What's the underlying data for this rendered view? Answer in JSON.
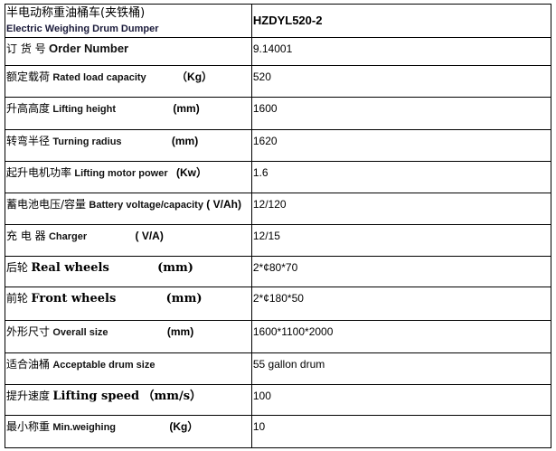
{
  "header": {
    "title_cn": "半电动称重油桶车(夹铁桶)",
    "title_en": "Electric Weighing Drum Dumper",
    "model": "HZDYL520-2"
  },
  "rows": [
    {
      "cn": "订 货 号",
      "en": "Order Number",
      "unit": "",
      "value": "9.14001"
    },
    {
      "cn": "额定载荷",
      "en": "Rated load capacity",
      "unit": "（Kg）",
      "value": "520"
    },
    {
      "cn": "升高高度",
      "en": "Lifting height",
      "unit": "(mm)",
      "value": "1600"
    },
    {
      "cn": "转弯半径",
      "en": "Turning radius",
      "unit": "(mm)",
      "value": "1620"
    },
    {
      "cn": "起升电机功率",
      "en": "Lifting motor power",
      "unit": "(Kw）",
      "value": "1.6"
    },
    {
      "cn": "蓄电池电压/容量",
      "en": "Battery voltage/capacity",
      "unit": "( V/Ah)",
      "value": "12/120"
    },
    {
      "cn": "充 电 器",
      "en": "Charger",
      "unit": "( V/A)",
      "value": "12/15"
    },
    {
      "cn": "后轮",
      "en": "Real wheels",
      "unit": "(mm)",
      "value": "2*¢80*70"
    },
    {
      "cn": "前轮",
      "en": "Front wheels",
      "unit": "(mm)",
      "value": "2*¢180*50"
    },
    {
      "cn": "外形尺寸",
      "en": "Overall size",
      "unit": "(mm)",
      "value": "1600*1100*2000"
    },
    {
      "cn": "适合油桶",
      "en": "Acceptable drum size",
      "unit": "",
      "value": "55 gallon drum"
    },
    {
      "cn": "提升速度",
      "en": "Lifting speed",
      "unit": "（mm/s）",
      "value": "100"
    },
    {
      "cn": "最小称重",
      "en": "Min.weighing",
      "unit": "(Kg）",
      "value": "10"
    }
  ]
}
